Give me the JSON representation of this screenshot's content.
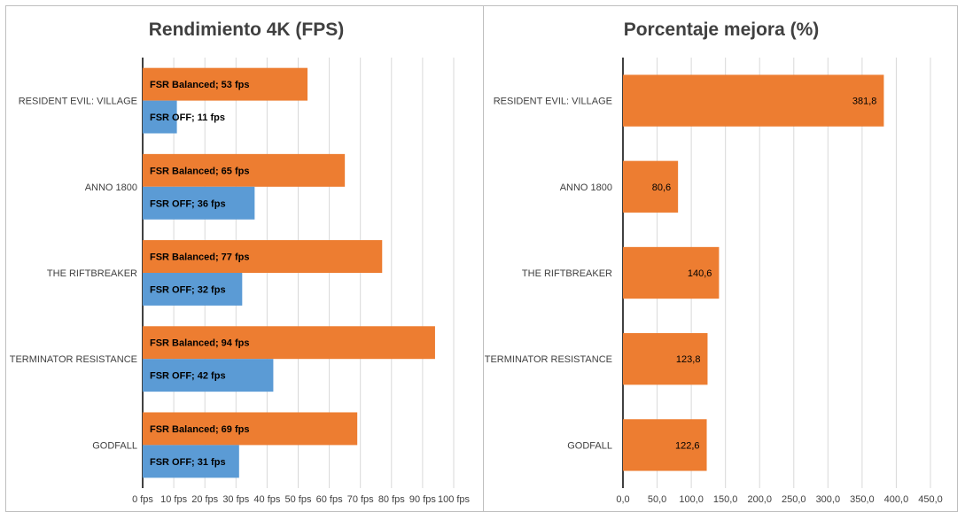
{
  "colors": {
    "orange": "#ED7D31",
    "blue": "#5B9BD5",
    "grid": "#D9D9D9",
    "axis": "#000000",
    "text": "#404040"
  },
  "chart_data": [
    {
      "type": "bar",
      "orientation": "horizontal",
      "title": "Rendimiento 4K (FPS)",
      "categories": [
        "RESIDENT EVIL: VILLAGE",
        "ANNO 1800",
        "THE RIFTBREAKER",
        "TERMINATOR RESISTANCE",
        "GODFALL"
      ],
      "series": [
        {
          "name": "FSR Balanced",
          "color": "#ED7D31",
          "values": [
            53,
            65,
            77,
            94,
            69
          ],
          "labels": [
            "FSR Balanced; 53 fps",
            "FSR Balanced; 65 fps",
            "FSR Balanced; 77 fps",
            "FSR Balanced; 94 fps",
            "FSR Balanced; 69 fps"
          ]
        },
        {
          "name": "FSR OFF",
          "color": "#5B9BD5",
          "values": [
            11,
            36,
            32,
            42,
            31
          ],
          "labels": [
            "FSR OFF; 11 fps",
            "FSR OFF; 36 fps",
            "FSR OFF; 32 fps",
            "FSR OFF; 42 fps",
            "FSR OFF; 31 fps"
          ]
        }
      ],
      "xlim": [
        0,
        100
      ],
      "xticks": [
        0,
        10,
        20,
        30,
        40,
        50,
        60,
        70,
        80,
        90,
        100
      ],
      "xtick_labels": [
        "0 fps",
        "10 fps",
        "20 fps",
        "30 fps",
        "40 fps",
        "50 fps",
        "60 fps",
        "70 fps",
        "80 fps",
        "90 fps",
        "100 fps"
      ],
      "grid": true,
      "legend": "none"
    },
    {
      "type": "bar",
      "orientation": "horizontal",
      "title": "Porcentaje mejora (%)",
      "categories": [
        "RESIDENT EVIL: VILLAGE",
        "ANNO 1800",
        "THE RIFTBREAKER",
        "TERMINATOR RESISTANCE",
        "GODFALL"
      ],
      "series": [
        {
          "color": "#ED7D31",
          "values": [
            381.8,
            80.6,
            140.6,
            123.8,
            122.6
          ],
          "labels": [
            "381,8",
            "80,6",
            "140,6",
            "123,8",
            "122,6"
          ]
        }
      ],
      "xlim": [
        0,
        450
      ],
      "xticks": [
        0,
        50,
        100,
        150,
        200,
        250,
        300,
        350,
        400,
        450
      ],
      "xtick_labels": [
        "0,0",
        "50,0",
        "100,0",
        "150,0",
        "200,0",
        "250,0",
        "300,0",
        "350,0",
        "400,0",
        "450,0"
      ],
      "grid": true,
      "legend": "none"
    }
  ]
}
